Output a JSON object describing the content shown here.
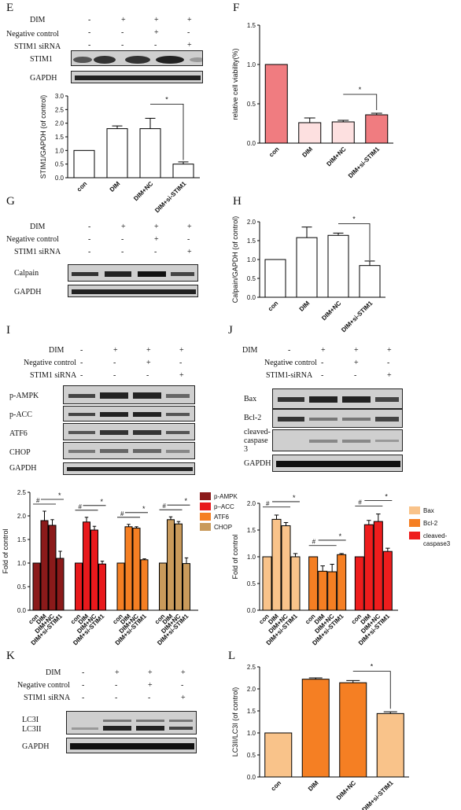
{
  "panels": {
    "E": {
      "letter": "E",
      "rows": [
        "DIM",
        "Negative control",
        "STIM1 siRNA"
      ],
      "signs": [
        [
          "-",
          "+",
          "+",
          "+"
        ],
        [
          "-",
          "-",
          "+",
          "-"
        ],
        [
          "-",
          "-",
          "-",
          "+"
        ]
      ],
      "bands": [
        "STIM1",
        "GAPDH"
      ]
    },
    "G": {
      "letter": "G",
      "rows": [
        "DIM",
        "Negative control",
        "STIM1 siRNA"
      ],
      "signs": [
        [
          "-",
          "+",
          "+",
          "+"
        ],
        [
          "-",
          "-",
          "+",
          "-"
        ],
        [
          "-",
          "-",
          "-",
          "+"
        ]
      ],
      "bands": [
        "Calpain",
        "GAPDH"
      ]
    },
    "I": {
      "letter": "I",
      "rows": [
        "DIM",
        "Negative control",
        "STIM1 siRNA"
      ],
      "signs": [
        [
          "-",
          "+",
          "+",
          "+"
        ],
        [
          "-",
          "-",
          "+",
          "-"
        ],
        [
          "-",
          "-",
          "-",
          "+"
        ]
      ],
      "bands": [
        "p-AMPK",
        "p-ACC",
        "ATF6",
        "CHOP",
        "GAPDH"
      ]
    },
    "J": {
      "letter": "J",
      "rows": [
        "DIM",
        "Negative control",
        "STIM1 siRNA"
      ],
      "signs": [
        [
          "-",
          "+",
          "+",
          "+"
        ],
        [
          "-",
          "-",
          "+",
          "-"
        ],
        [
          "-",
          "-",
          "-",
          "+"
        ]
      ],
      "bands": [
        "Bax",
        "Bcl-2",
        "cleaved-caspase 3",
        "GAPDH"
      ]
    },
    "K": {
      "letter": "K",
      "rows": [
        "DIM",
        "Negative control",
        "STIM1 siRNA"
      ],
      "signs": [
        [
          "-",
          "+",
          "+",
          "+"
        ],
        [
          "-",
          "-",
          "+",
          "-"
        ],
        [
          "-",
          "-",
          "-",
          "+"
        ]
      ],
      "bands": [
        "LC3I",
        "LC3II",
        "GAPDH"
      ]
    },
    "F_letter": "F",
    "H_letter": "H",
    "L_letter": "L"
  },
  "chart_data": [
    {
      "id": "E",
      "type": "bar",
      "categories": [
        "con",
        "DIM",
        "DIM+NC",
        "DIM+si-STIM1"
      ],
      "values": [
        1.0,
        1.8,
        1.8,
        0.5
      ],
      "errors": [
        0,
        0.1,
        0.38,
        0.08
      ],
      "ylabel": "STIM1/GAPDH (of control)",
      "ylim": [
        0,
        3.0
      ],
      "yticks": [
        "0.0",
        "0.5",
        "1.0",
        "1.5",
        "2.0",
        "2.5",
        "3.0"
      ],
      "colors": [
        "#ffffff",
        "#ffffff",
        "#ffffff",
        "#ffffff"
      ],
      "sig": "*"
    },
    {
      "id": "F",
      "type": "bar",
      "categories": [
        "con",
        "DIM",
        "DIM+NC",
        "DIM+si-STIM1"
      ],
      "values": [
        1.0,
        0.26,
        0.27,
        0.36
      ],
      "errors": [
        0,
        0.06,
        0.02,
        0.02
      ],
      "ylabel": "relative cell viability(%)",
      "ylim": [
        0,
        1.5
      ],
      "yticks": [
        "0.0",
        "0.5",
        "1.0",
        "1.5"
      ],
      "colors": [
        "#f07c80",
        "#fde0e0",
        "#fde0e0",
        "#f07c80"
      ],
      "sig": "*"
    },
    {
      "id": "H",
      "type": "bar",
      "categories": [
        "con",
        "DIM",
        "DIM+NC",
        "DIM+si-STIM1"
      ],
      "values": [
        1.0,
        1.58,
        1.64,
        0.84
      ],
      "errors": [
        0,
        0.28,
        0.06,
        0.12
      ],
      "ylabel": "Calpain/GAPDH (of control)",
      "ylim": [
        0,
        2.0
      ],
      "yticks": [
        "0.0",
        "0.5",
        "1.0",
        "1.5",
        "2.0"
      ],
      "colors": [
        "#ffffff",
        "#ffffff",
        "#ffffff",
        "#ffffff"
      ],
      "sig": "*"
    },
    {
      "id": "I",
      "type": "bar",
      "categories": [
        "con",
        "DIM",
        "DIM+NC",
        "DIM+si-STIM1"
      ],
      "series": [
        {
          "name": "p-AMPK",
          "values": [
            1.0,
            1.9,
            1.8,
            1.1
          ],
          "errors": [
            0,
            0.2,
            0.12,
            0.15
          ],
          "color": "#8b1a1a"
        },
        {
          "name": "p–ACC",
          "values": [
            1.0,
            1.87,
            1.7,
            0.98
          ],
          "errors": [
            0,
            0.1,
            0.08,
            0.06
          ],
          "color": "#e8191c"
        },
        {
          "name": "ATF6",
          "values": [
            1.0,
            1.77,
            1.74,
            1.07
          ],
          "errors": [
            0,
            0.05,
            0.03,
            0.02
          ],
          "color": "#f57f23"
        },
        {
          "name": "CHOP",
          "values": [
            1.0,
            1.92,
            1.83,
            0.99
          ],
          "errors": [
            0,
            0.06,
            0.05,
            0.12
          ],
          "color": "#c99a5b"
        }
      ],
      "ylabel": "Fold of control",
      "ylim": [
        0,
        2.5
      ],
      "yticks": [
        "0.0",
        "0.5",
        "1.0",
        "1.5",
        "2.0",
        "2.5"
      ],
      "sig": [
        "#",
        "*"
      ]
    },
    {
      "id": "J",
      "type": "bar",
      "categories": [
        "con",
        "DIM",
        "DIM+NC",
        "DIM+si-STIM1"
      ],
      "series": [
        {
          "name": "Bax",
          "values": [
            1.0,
            1.7,
            1.58,
            1.0
          ],
          "errors": [
            0,
            0.08,
            0.06,
            0.06
          ],
          "color": "#f9c38a"
        },
        {
          "name": "Bcl-2",
          "values": [
            1.0,
            0.73,
            0.72,
            1.04
          ],
          "errors": [
            0,
            0.1,
            0.14,
            0.02
          ],
          "color": "#f57f23"
        },
        {
          "name": "cleaved-caspase3",
          "values": [
            1.0,
            1.6,
            1.66,
            1.1
          ],
          "errors": [
            0,
            0.08,
            0.14,
            0.06
          ],
          "color": "#ee1d1d"
        }
      ],
      "legend_labels": [
        "Bax",
        "Bcl-2",
        "cleaved-",
        "caspase3"
      ],
      "ylabel": "Fold of control",
      "ylim": [
        0,
        2.0
      ],
      "yticks": [
        "0.0",
        "0.5",
        "1.0",
        "1.5",
        "2.0"
      ],
      "sig": [
        "#",
        "*"
      ]
    },
    {
      "id": "L",
      "type": "bar",
      "categories": [
        "con",
        "DIM",
        "DIM+NC",
        "DIM+si-STIM1"
      ],
      "values": [
        1.0,
        2.22,
        2.14,
        1.44
      ],
      "errors": [
        0,
        0.03,
        0.05,
        0.04
      ],
      "ylabel": "LC3II/LC3I (of control)",
      "ylim": [
        0,
        2.5
      ],
      "yticks": [
        "0.0",
        "0.5",
        "1.0",
        "1.5",
        "2.0",
        "2.5"
      ],
      "colors": [
        "#f9c38a",
        "#f57f23",
        "#f57f23",
        "#f9c38a"
      ],
      "sig": "*"
    }
  ]
}
